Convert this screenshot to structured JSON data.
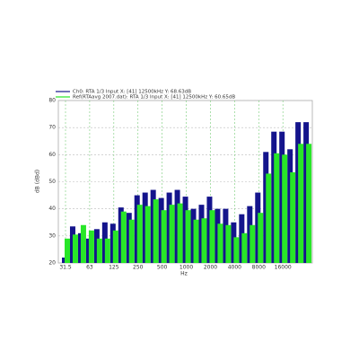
{
  "chart_data": {
    "type": "bar",
    "legend_position": "top-left",
    "x_label": "Hz",
    "y_label": "dB (dBd)",
    "categories": [
      "31.5",
      null,
      null,
      "63",
      null,
      null,
      "125",
      null,
      null,
      "250",
      null,
      null,
      "500",
      null,
      null,
      "1000",
      null,
      null,
      "2000",
      null,
      null,
      "4000",
      null,
      null,
      "8000",
      null,
      null,
      "16000",
      null,
      null,
      null
    ],
    "series": [
      {
        "name": "Ch0: RTA 1/3 Input  X: [41] 12500kHz Y: 68.63dB",
        "color": "#14148c",
        "values": [
          22,
          33.5,
          31,
          29,
          32.5,
          35,
          34.5,
          40.5,
          38.5,
          45,
          46,
          47,
          44,
          46,
          47,
          44.5,
          40,
          41.5,
          44.5,
          40,
          40,
          35,
          38,
          41,
          46,
          61,
          68.5,
          68.5,
          62,
          72,
          72
        ]
      },
      {
        "name": "Ref(RTAavg 2007.dat): RTA 1/3 Input  X: [41] 12500kHz Y: 60.65dB",
        "color": "#28e628",
        "values": [
          29,
          30.5,
          34,
          32,
          29,
          29,
          32,
          39,
          36,
          41.5,
          41,
          43.5,
          39.5,
          41.5,
          42,
          39.5,
          36,
          36.5,
          39.5,
          34.5,
          34,
          29.5,
          31,
          34,
          38.5,
          53,
          60.5,
          60,
          53.5,
          64,
          64
        ]
      }
    ],
    "ylim": [
      20,
      80
    ],
    "yticks": [
      20,
      30,
      40,
      50,
      60,
      70,
      80
    ],
    "grid": true
  }
}
